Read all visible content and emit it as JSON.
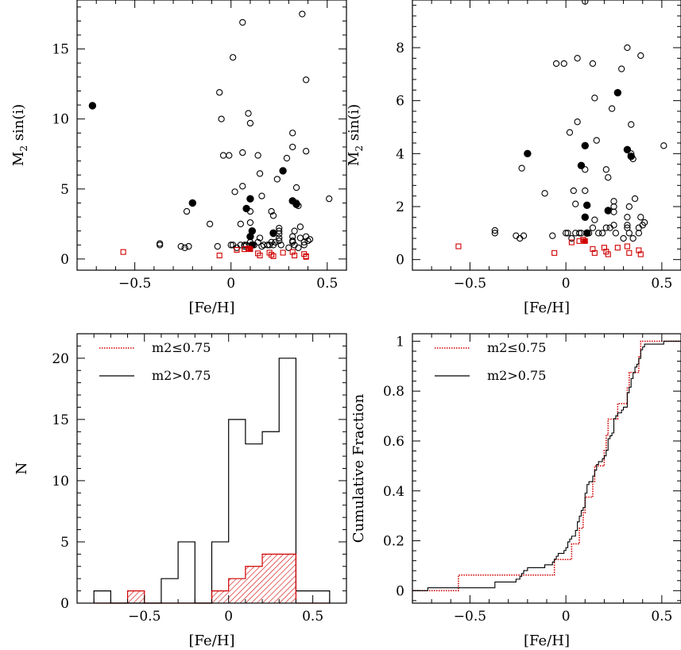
{
  "colors": {
    "black": "#000000",
    "red": "#d00000"
  },
  "chart_data": [
    {
      "id": "tl",
      "type": "scatter",
      "xlabel": "[Fe/H]",
      "ylabel_main": "M",
      "ylabel_sub": "2",
      "ylabel_rest": " sin(i)",
      "xlim": [
        -0.8,
        0.6
      ],
      "ylim": [
        -0.8,
        18.5
      ],
      "xticks": [
        -0.5,
        0,
        0.5
      ],
      "xtick_labels": [
        "−0.5",
        "0",
        "0.5"
      ],
      "yticks": [
        0,
        5,
        10,
        15
      ],
      "ytick_labels": [
        "0",
        "5",
        "10",
        "15"
      ],
      "series": [
        {
          "marker": "open-circle",
          "color": "#000000",
          "points": [
            [
              -0.37,
              1.0
            ],
            [
              -0.37,
              1.1
            ],
            [
              -0.26,
              0.9
            ],
            [
              -0.24,
              0.8
            ],
            [
              -0.22,
              0.9
            ],
            [
              -0.23,
              3.4
            ],
            [
              -0.11,
              2.5
            ],
            [
              -0.07,
              0.9
            ],
            [
              -0.06,
              11.9
            ],
            [
              -0.05,
              10.0
            ],
            [
              -0.04,
              7.4
            ],
            [
              -0.01,
              7.4
            ],
            [
              0.0,
              1.0
            ],
            [
              0.01,
              1.0
            ],
            [
              0.01,
              14.4
            ],
            [
              0.02,
              4.8
            ],
            [
              0.03,
              0.8
            ],
            [
              0.05,
              2.5
            ],
            [
              0.05,
              1.0
            ],
            [
              0.06,
              16.9
            ],
            [
              0.06,
              5.2
            ],
            [
              0.06,
              7.6
            ],
            [
              0.07,
              1.0
            ],
            [
              0.07,
              0.9
            ],
            [
              0.08,
              1.0
            ],
            [
              0.09,
              10.4
            ],
            [
              0.1,
              9.7
            ],
            [
              0.1,
              3.4
            ],
            [
              0.1,
              2.6
            ],
            [
              0.1,
              1.2
            ],
            [
              0.11,
              1.0
            ],
            [
              0.12,
              1.0
            ],
            [
              0.14,
              1.2
            ],
            [
              0.14,
              7.4
            ],
            [
              0.15,
              6.1
            ],
            [
              0.15,
              1.5
            ],
            [
              0.16,
              4.5
            ],
            [
              0.16,
              0.9
            ],
            [
              0.17,
              1.0
            ],
            [
              0.19,
              1.0
            ],
            [
              0.2,
              1.0
            ],
            [
              0.21,
              3.4
            ],
            [
              0.21,
              1.2
            ],
            [
              0.22,
              1.8
            ],
            [
              0.22,
              3.1
            ],
            [
              0.22,
              1.0
            ],
            [
              0.23,
              1.2
            ],
            [
              0.24,
              5.7
            ],
            [
              0.25,
              1.8
            ],
            [
              0.25,
              2.0
            ],
            [
              0.25,
              2.2
            ],
            [
              0.25,
              1.5
            ],
            [
              0.25,
              1.3
            ],
            [
              0.26,
              1.0
            ],
            [
              0.29,
              7.2
            ],
            [
              0.3,
              0.8
            ],
            [
              0.32,
              8.0
            ],
            [
              0.32,
              1.6
            ],
            [
              0.32,
              1.3
            ],
            [
              0.32,
              1.2
            ],
            [
              0.33,
              2.0
            ],
            [
              0.33,
              1.0
            ],
            [
              0.34,
              5.1
            ],
            [
              0.34,
              4.0
            ],
            [
              0.35,
              3.8
            ],
            [
              0.35,
              0.8
            ],
            [
              0.36,
              1.5
            ],
            [
              0.36,
              2.3
            ],
            [
              0.37,
              17.5
            ],
            [
              0.38,
              1.0
            ],
            [
              0.38,
              1.2
            ],
            [
              0.39,
              1.6
            ],
            [
              0.39,
              12.8
            ],
            [
              0.39,
              7.7
            ],
            [
              0.4,
              1.3
            ],
            [
              0.41,
              1.4
            ],
            [
              0.51,
              4.3
            ],
            [
              0.32,
              9.0
            ]
          ]
        },
        {
          "marker": "filled-circle",
          "color": "#000000",
          "points": [
            [
              -0.72,
              10.95
            ],
            [
              -0.2,
              4.0
            ],
            [
              0.08,
              3.6
            ],
            [
              0.1,
              4.3
            ],
            [
              0.1,
              1.6
            ],
            [
              0.11,
              2.0
            ],
            [
              0.11,
              1.0
            ],
            [
              0.22,
              1.85
            ],
            [
              0.27,
              6.3
            ],
            [
              0.32,
              4.15
            ],
            [
              0.34,
              3.9
            ]
          ]
        },
        {
          "marker": "open-square",
          "color": "#d00000",
          "points": [
            [
              -0.56,
              0.5
            ],
            [
              -0.06,
              0.25
            ],
            [
              0.03,
              0.65
            ],
            [
              0.07,
              0.7
            ],
            [
              0.09,
              0.75
            ],
            [
              0.14,
              0.4
            ],
            [
              0.15,
              0.25
            ],
            [
              0.2,
              0.45
            ],
            [
              0.21,
              0.3
            ],
            [
              0.22,
              0.2
            ],
            [
              0.27,
              0.45
            ],
            [
              0.32,
              0.5
            ],
            [
              0.33,
              0.25
            ],
            [
              0.38,
              0.35
            ],
            [
              0.39,
              0.2
            ],
            [
              0.39,
              0.15
            ]
          ]
        },
        {
          "marker": "filled-square",
          "color": "#d00000",
          "points": [
            [
              0.1,
              0.7
            ]
          ]
        }
      ]
    },
    {
      "id": "tr",
      "type": "scatter",
      "xlabel": "[Fe/H]",
      "ylabel_main": "M",
      "ylabel_sub": "2",
      "ylabel_rest": " sin(i)",
      "xlim": [
        -0.8,
        0.6
      ],
      "ylim": [
        -0.4,
        9.8
      ],
      "xticks": [
        -0.5,
        0,
        0.5
      ],
      "xtick_labels": [
        "−0.5",
        "0",
        "0.5"
      ],
      "yticks": [
        0,
        2,
        4,
        6,
        8
      ],
      "ytick_labels": [
        "0",
        "2",
        "4",
        "6",
        "8"
      ],
      "series": [
        {
          "marker": "open-circle",
          "color": "#000000",
          "points": [
            [
              -0.37,
              1.0
            ],
            [
              -0.37,
              1.1
            ],
            [
              -0.26,
              0.9
            ],
            [
              -0.24,
              0.8
            ],
            [
              -0.22,
              0.9
            ],
            [
              -0.23,
              3.45
            ],
            [
              -0.11,
              2.5
            ],
            [
              -0.07,
              0.9
            ],
            [
              -0.05,
              7.4
            ],
            [
              -0.01,
              7.4
            ],
            [
              0.0,
              1.0
            ],
            [
              0.01,
              1.0
            ],
            [
              0.02,
              4.8
            ],
            [
              0.03,
              0.8
            ],
            [
              0.04,
              2.6
            ],
            [
              0.05,
              1.0
            ],
            [
              0.05,
              2.1
            ],
            [
              0.06,
              7.6
            ],
            [
              0.06,
              5.2
            ],
            [
              0.07,
              1.0
            ],
            [
              0.08,
              1.0
            ],
            [
              0.1,
              9.75
            ],
            [
              0.1,
              3.4
            ],
            [
              0.1,
              2.6
            ],
            [
              0.12,
              1.0
            ],
            [
              0.14,
              1.2
            ],
            [
              0.14,
              7.4
            ],
            [
              0.15,
              6.1
            ],
            [
              0.15,
              1.5
            ],
            [
              0.16,
              4.5
            ],
            [
              0.17,
              1.0
            ],
            [
              0.19,
              1.0
            ],
            [
              0.21,
              3.4
            ],
            [
              0.21,
              1.2
            ],
            [
              0.22,
              3.1
            ],
            [
              0.23,
              1.2
            ],
            [
              0.24,
              5.7
            ],
            [
              0.25,
              1.8
            ],
            [
              0.25,
              2.0
            ],
            [
              0.25,
              2.2
            ],
            [
              0.25,
              1.3
            ],
            [
              0.26,
              1.0
            ],
            [
              0.29,
              7.2
            ],
            [
              0.3,
              0.8
            ],
            [
              0.32,
              8.0
            ],
            [
              0.32,
              1.6
            ],
            [
              0.32,
              1.3
            ],
            [
              0.32,
              1.2
            ],
            [
              0.33,
              2.0
            ],
            [
              0.33,
              1.0
            ],
            [
              0.34,
              5.1
            ],
            [
              0.34,
              4.0
            ],
            [
              0.35,
              3.8
            ],
            [
              0.35,
              0.8
            ],
            [
              0.36,
              2.3
            ],
            [
              0.38,
              1.0
            ],
            [
              0.38,
              1.2
            ],
            [
              0.39,
              1.6
            ],
            [
              0.39,
              7.7
            ],
            [
              0.4,
              1.3
            ],
            [
              0.41,
              1.4
            ],
            [
              0.51,
              4.3
            ]
          ]
        },
        {
          "marker": "filled-circle",
          "color": "#000000",
          "points": [
            [
              -0.2,
              4.0
            ],
            [
              0.08,
              3.55
            ],
            [
              0.1,
              4.3
            ],
            [
              0.1,
              1.6
            ],
            [
              0.11,
              2.05
            ],
            [
              0.11,
              1.0
            ],
            [
              0.22,
              1.85
            ],
            [
              0.27,
              6.3
            ],
            [
              0.32,
              4.15
            ],
            [
              0.34,
              3.9
            ]
          ]
        },
        {
          "marker": "open-square",
          "color": "#d00000",
          "points": [
            [
              -0.56,
              0.5
            ],
            [
              -0.06,
              0.25
            ],
            [
              0.03,
              0.65
            ],
            [
              0.07,
              0.7
            ],
            [
              0.09,
              0.75
            ],
            [
              0.14,
              0.4
            ],
            [
              0.15,
              0.25
            ],
            [
              0.2,
              0.45
            ],
            [
              0.21,
              0.3
            ],
            [
              0.22,
              0.2
            ],
            [
              0.27,
              0.45
            ],
            [
              0.32,
              0.5
            ],
            [
              0.33,
              0.25
            ],
            [
              0.38,
              0.35
            ],
            [
              0.39,
              0.2
            ]
          ]
        },
        {
          "marker": "filled-square",
          "color": "#d00000",
          "points": [
            [
              0.1,
              0.7
            ]
          ]
        }
      ]
    },
    {
      "id": "bl",
      "type": "bar",
      "xlabel": "[Fe/H]",
      "ylabel": "N",
      "xlim": [
        -0.9,
        0.7
      ],
      "ylim": [
        0,
        22
      ],
      "xticks": [
        -0.5,
        0,
        0.5
      ],
      "xtick_labels": [
        "−0.5",
        "0",
        "0.5"
      ],
      "yticks": [
        0,
        5,
        10,
        15,
        20
      ],
      "ytick_labels": [
        "0",
        "5",
        "10",
        "15",
        "20"
      ],
      "bin_edges": [
        -0.8,
        -0.7,
        -0.6,
        -0.5,
        -0.4,
        -0.3,
        -0.2,
        -0.1,
        0.0,
        0.1,
        0.2,
        0.3,
        0.4,
        0.5,
        0.6
      ],
      "series": [
        {
          "name": "m2>0.75",
          "color": "#000000",
          "counts": [
            1,
            0,
            0,
            0,
            2,
            5,
            0,
            5,
            15,
            13,
            14,
            20,
            1,
            1
          ]
        },
        {
          "name": "m2≤0.75",
          "color": "#d00000",
          "counts": [
            0,
            0,
            1,
            0,
            0,
            0,
            0,
            1,
            2,
            3,
            4,
            4,
            0,
            0
          ]
        }
      ]
    },
    {
      "id": "br",
      "type": "line",
      "xlabel": "[Fe/H]",
      "ylabel": "Cumulative Fraction",
      "xlim": [
        -0.8,
        0.6
      ],
      "ylim": [
        -0.05,
        1.03
      ],
      "xticks": [
        -0.5,
        0,
        0.5
      ],
      "xtick_labels": [
        "−0.5",
        "0",
        "0.5"
      ],
      "yticks": [
        0,
        0.2,
        0.4,
        0.6,
        0.8,
        1
      ],
      "ytick_labels": [
        "0",
        "0.2",
        "0.4",
        "0.6",
        "0.8",
        "1"
      ],
      "series": [
        {
          "name": "m2≤0.75",
          "color": "#d00000",
          "style": "dotted",
          "x": [
            -0.56,
            -0.06,
            0.03,
            0.07,
            0.09,
            0.1,
            0.14,
            0.15,
            0.2,
            0.21,
            0.22,
            0.27,
            0.32,
            0.33,
            0.38,
            0.39
          ]
        },
        {
          "name": "m2>0.75",
          "color": "#000000",
          "style": "solid",
          "x": [
            -0.72,
            -0.37,
            -0.37,
            -0.26,
            -0.24,
            -0.23,
            -0.22,
            -0.2,
            -0.11,
            -0.07,
            -0.06,
            -0.05,
            -0.04,
            -0.01,
            0.0,
            0.01,
            0.01,
            0.02,
            0.03,
            0.05,
            0.05,
            0.06,
            0.06,
            0.06,
            0.07,
            0.07,
            0.08,
            0.08,
            0.09,
            0.1,
            0.1,
            0.1,
            0.1,
            0.1,
            0.11,
            0.11,
            0.11,
            0.12,
            0.14,
            0.14,
            0.15,
            0.15,
            0.16,
            0.16,
            0.17,
            0.19,
            0.2,
            0.21,
            0.21,
            0.22,
            0.22,
            0.22,
            0.22,
            0.23,
            0.24,
            0.25,
            0.25,
            0.25,
            0.25,
            0.25,
            0.26,
            0.27,
            0.29,
            0.3,
            0.32,
            0.32,
            0.32,
            0.32,
            0.32,
            0.33,
            0.33,
            0.34,
            0.34,
            0.34,
            0.35,
            0.35,
            0.36,
            0.36,
            0.37,
            0.38,
            0.38,
            0.39,
            0.39,
            0.39,
            0.4,
            0.41,
            0.51
          ]
        }
      ]
    }
  ]
}
